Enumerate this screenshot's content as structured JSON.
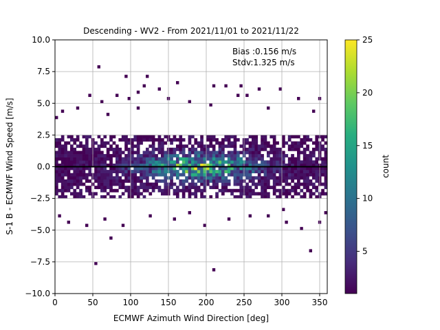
{
  "chart_data": {
    "type": "heatmap",
    "title": "Descending - WV2 - From 2021/11/01 to 2021/11/22",
    "xlabel": "ECMWF Azimuth Wind Direction [deg]",
    "ylabel": "S-1 B - ECMWF Wind Speed [m/s]",
    "xlim": [
      0,
      360
    ],
    "ylim": [
      -10,
      10
    ],
    "xticks": [
      0,
      50,
      100,
      150,
      200,
      250,
      300,
      350
    ],
    "yticks": [
      -10.0,
      -7.5,
      -5.0,
      -2.5,
      0.0,
      2.5,
      5.0,
      7.5,
      10.0
    ],
    "grid": true,
    "annotations": [
      "Bias :0.156 m/s",
      "Stdv:1.325 m/s"
    ],
    "reference_line": {
      "y": 0.0,
      "color": "#000000"
    },
    "colorbar": {
      "label": "count",
      "range": [
        1,
        25
      ],
      "ticks": [
        5,
        10,
        15,
        20,
        25
      ],
      "colormap": "viridis"
    },
    "bin_size": {
      "x": 4,
      "y": 0.25
    },
    "scattered_single_counts": [
      [
        56,
        7.8
      ],
      [
        92,
        7.2
      ],
      [
        123,
        7.1
      ],
      [
        116,
        6.4
      ],
      [
        136,
        6.1
      ],
      [
        108,
        5.9
      ],
      [
        160,
        6.6
      ],
      [
        211,
        6.4
      ],
      [
        227,
        6.4
      ],
      [
        244,
        6.4
      ],
      [
        298,
        6.0
      ],
      [
        268,
        6.2
      ],
      [
        45,
        5.5
      ],
      [
        62,
        5.1
      ],
      [
        80,
        5.6
      ],
      [
        99,
        5.3
      ],
      [
        150,
        5.4
      ],
      [
        178,
        5.0
      ],
      [
        243,
        5.5
      ],
      [
        255,
        5.6
      ],
      [
        323,
        5.3
      ],
      [
        350,
        5.3
      ],
      [
        10,
        4.4
      ],
      [
        30,
        4.6
      ],
      [
        70,
        4.1
      ],
      [
        110,
        4.5
      ],
      [
        205,
        4.8
      ],
      [
        280,
        4.6
      ],
      [
        340,
        4.4
      ],
      [
        55,
        -7.7
      ],
      [
        73,
        -5.6
      ],
      [
        210,
        -8.1
      ],
      [
        338,
        -6.6
      ],
      [
        18,
        -4.5
      ],
      [
        42,
        -4.6
      ],
      [
        64,
        -4.2
      ],
      [
        88,
        -4.6
      ],
      [
        157,
        -4.1
      ],
      [
        197,
        -4.7
      ],
      [
        231,
        -4.2
      ],
      [
        282,
        -4.0
      ],
      [
        306,
        -4.4
      ],
      [
        324,
        -5.0
      ],
      [
        349,
        -4.3
      ],
      [
        125,
        -3.8
      ],
      [
        176,
        -3.6
      ],
      [
        256,
        -3.8
      ],
      [
        300,
        -3.3
      ],
      [
        358,
        -3.6
      ],
      [
        2,
        3.9
      ],
      [
        4,
        -3.9
      ]
    ],
    "dense_band": {
      "y_center": 0.0,
      "y_halfwidth": 2.5,
      "peak_x": 190,
      "peak_count": 25
    }
  }
}
